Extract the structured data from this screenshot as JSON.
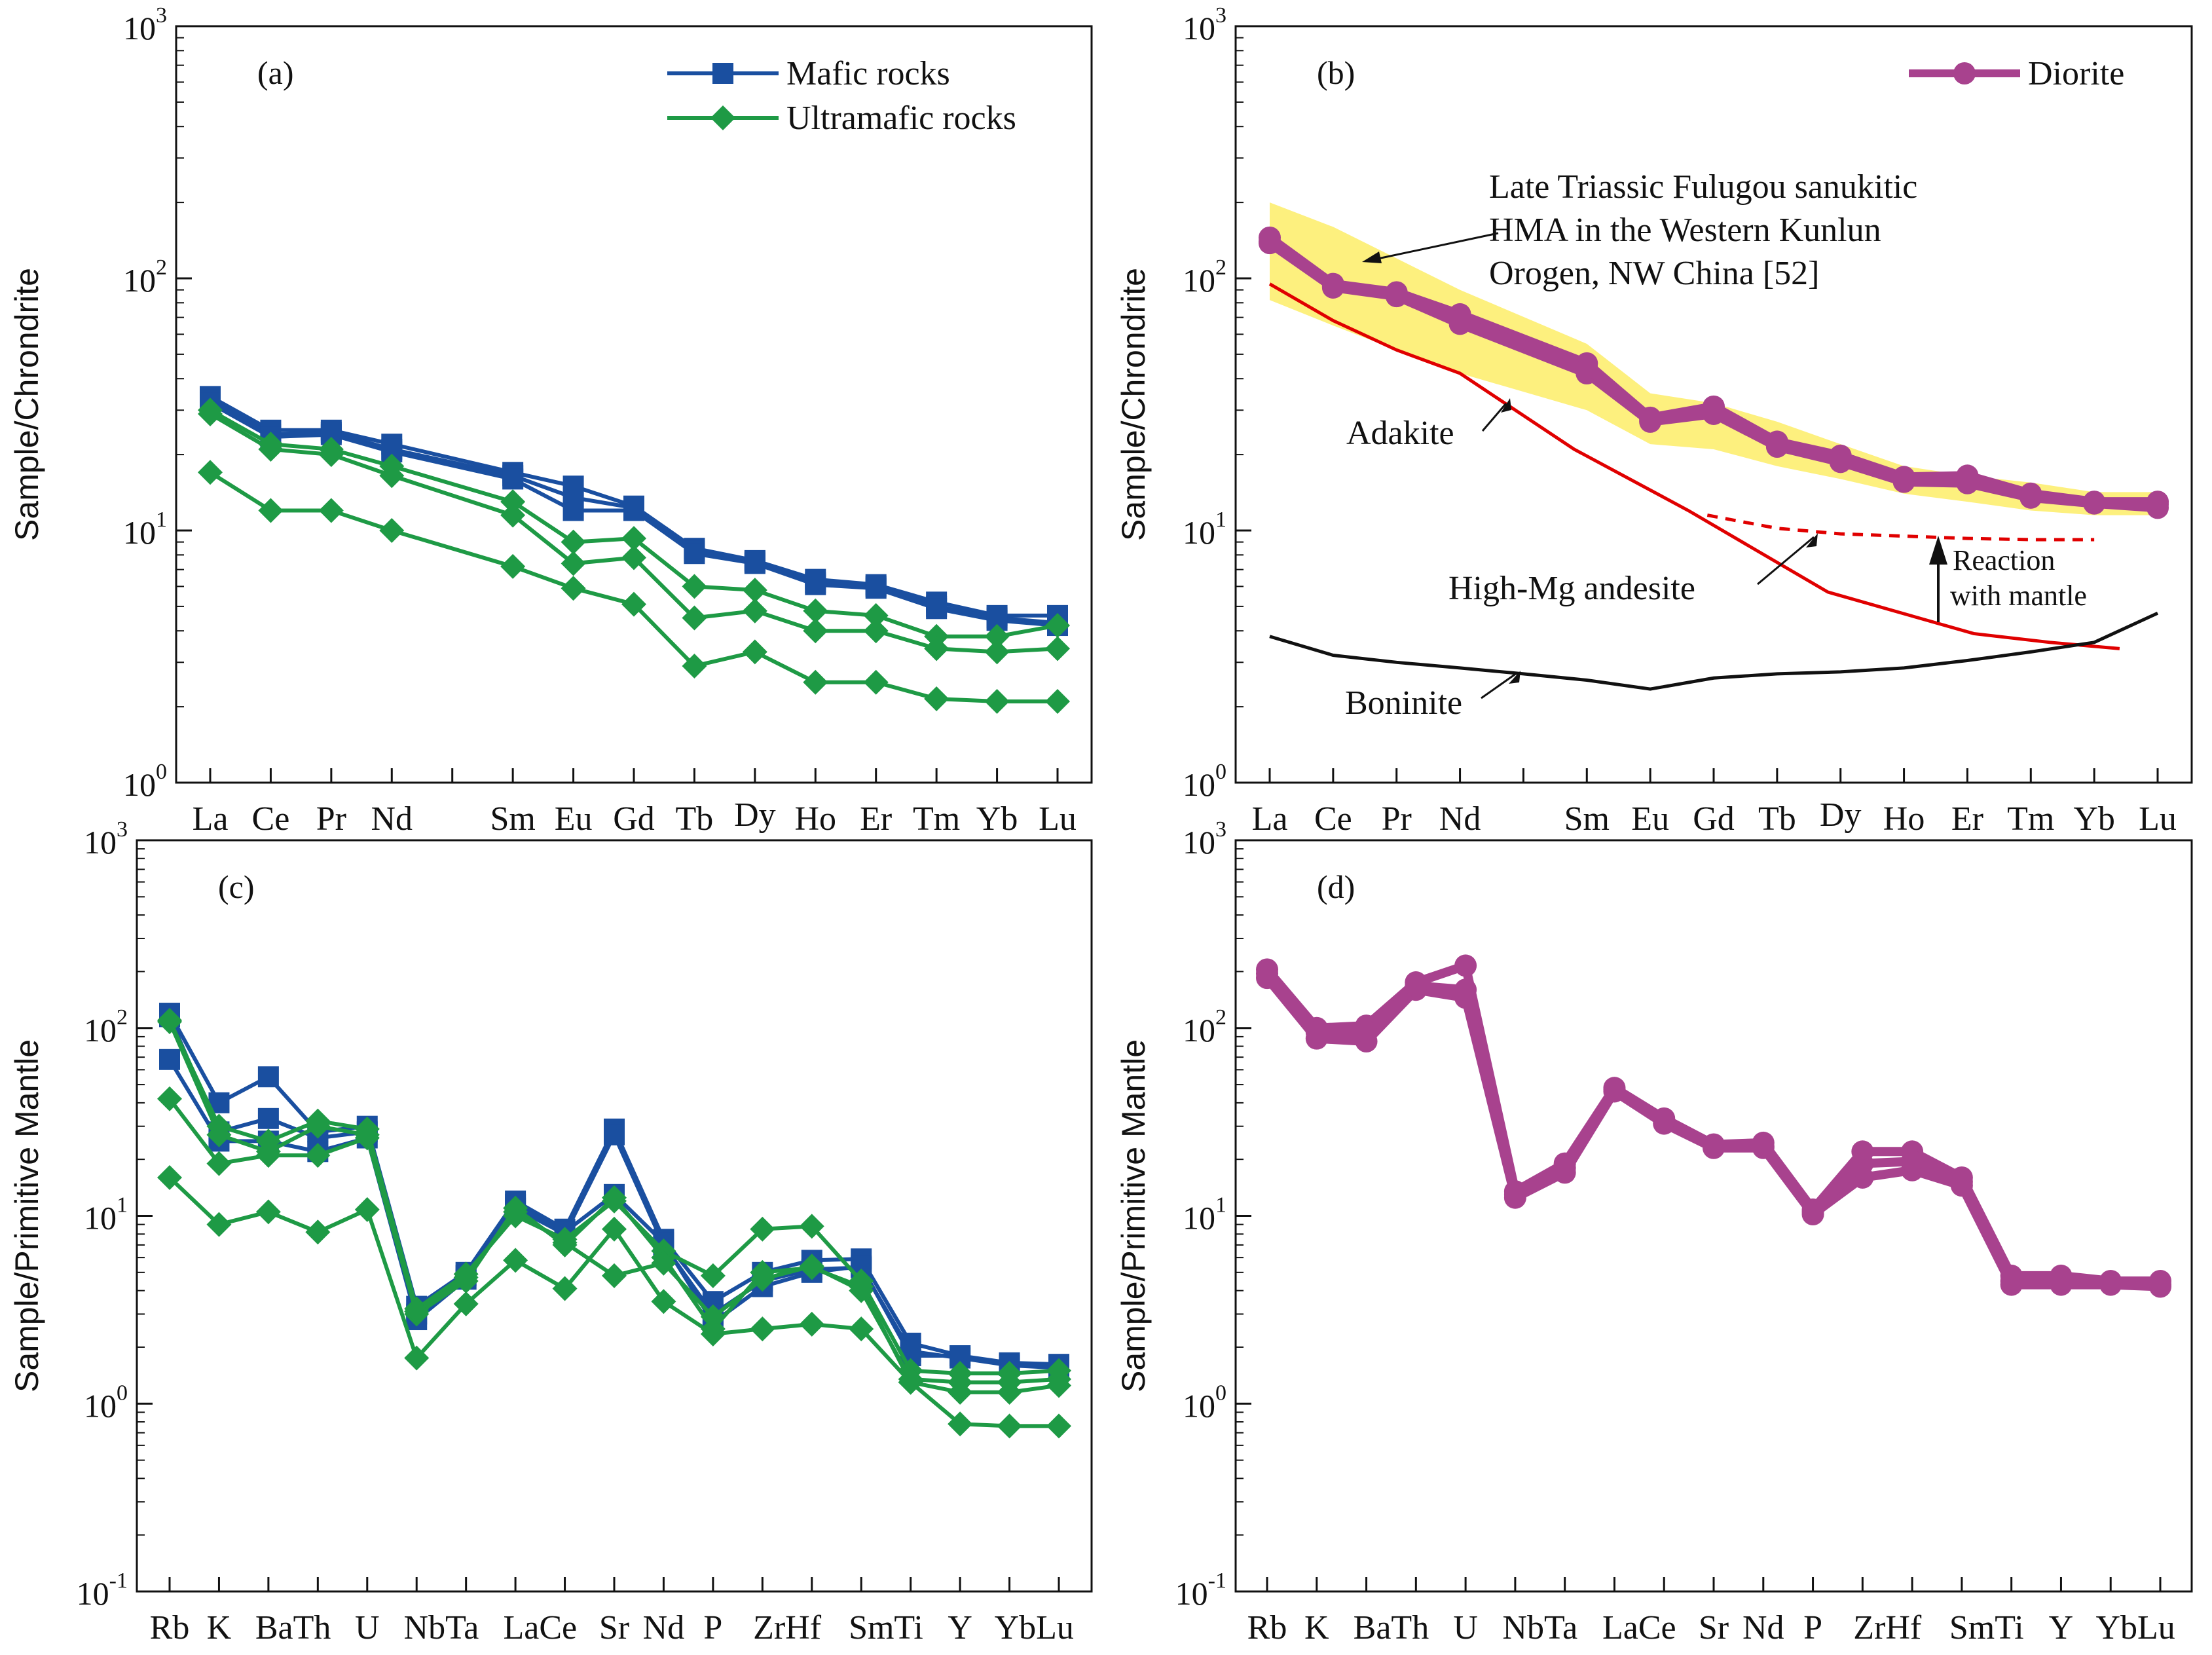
{
  "chart_data": [
    {
      "id": "a",
      "type": "line",
      "panel_label": "(a)",
      "title": "",
      "ylabel": "Sample/Chrondrite",
      "yscale": "log",
      "ylim": [
        1,
        1000
      ],
      "yticks": [
        {
          "value": 1,
          "base": "10",
          "exp": "0"
        },
        {
          "value": 10,
          "base": "10",
          "exp": "1"
        },
        {
          "value": 100,
          "base": "10",
          "exp": "2"
        },
        {
          "value": 1000,
          "base": "10",
          "exp": "3"
        }
      ],
      "categories": [
        "La",
        "Ce",
        "Pr",
        "Nd",
        "Sm",
        "Eu",
        "Gd",
        "Tb",
        "Dy",
        "Ho",
        "Er",
        "Tm",
        "Yb",
        "Lu"
      ],
      "x_positions": [
        0,
        1,
        2,
        3,
        5,
        6,
        7,
        8,
        9,
        10,
        11,
        12,
        13,
        14
      ],
      "legend": {
        "placement": "top-right",
        "entries": [
          {
            "label": "Mafic rocks",
            "color": "#1a4fa0",
            "marker": "square"
          },
          {
            "label": "Ultramafic rocks",
            "color": "#1e9a45",
            "marker": "diamond"
          }
        ]
      },
      "series": [
        {
          "name": "Mafic rocks",
          "color": "#1a4fa0",
          "marker": "square",
          "values": [
            34,
            25,
            25,
            22,
            17,
            15,
            12.5,
            8.5,
            7.6,
            6.4,
            6.1,
            5.2,
            4.6,
            4.6
          ]
        },
        {
          "name": "Mafic rocks",
          "color": "#1a4fa0",
          "marker": "square",
          "values": [
            33,
            24,
            24.5,
            21,
            16.5,
            13.5,
            12.3,
            8.3,
            7.5,
            6.2,
            6.0,
            5.0,
            4.5,
            4.3
          ]
        },
        {
          "name": "Mafic rocks",
          "color": "#1a4fa0",
          "marker": "square",
          "values": [
            32,
            23.5,
            24,
            20.5,
            16,
            12,
            12,
            8.1,
            7.4,
            6.1,
            5.9,
            4.9,
            4.4,
            4.2
          ]
        },
        {
          "name": "Ultramafic rocks",
          "color": "#1e9a45",
          "marker": "diamond",
          "values": [
            30,
            22,
            21,
            18,
            13,
            9,
            9.3,
            6,
            5.8,
            4.8,
            4.6,
            3.8,
            3.8,
            4.2
          ]
        },
        {
          "name": "Ultramafic rocks",
          "color": "#1e9a45",
          "marker": "diamond",
          "values": [
            29,
            21,
            20,
            16.5,
            11.5,
            7.4,
            7.8,
            4.5,
            4.8,
            4.0,
            4.0,
            3.4,
            3.3,
            3.4
          ]
        },
        {
          "name": "Ultramafic rocks",
          "color": "#1e9a45",
          "marker": "diamond",
          "values": [
            17,
            12,
            12,
            10,
            7.2,
            5.9,
            5.1,
            2.9,
            3.3,
            2.5,
            2.5,
            2.15,
            2.1,
            2.1
          ]
        }
      ]
    },
    {
      "id": "b",
      "type": "line",
      "panel_label": "(b)",
      "title": "",
      "ylabel": "Sample/Chrondrite",
      "yscale": "log",
      "ylim": [
        1,
        1000
      ],
      "yticks": [
        {
          "value": 1,
          "base": "10",
          "exp": "0"
        },
        {
          "value": 10,
          "base": "10",
          "exp": "1"
        },
        {
          "value": 100,
          "base": "10",
          "exp": "2"
        },
        {
          "value": 1000,
          "base": "10",
          "exp": "3"
        }
      ],
      "categories": [
        "La",
        "Ce",
        "Pr",
        "Nd",
        "Sm",
        "Eu",
        "Gd",
        "Tb",
        "Dy",
        "Ho",
        "Er",
        "Tm",
        "Yb",
        "Lu"
      ],
      "x_positions": [
        0,
        1,
        2,
        3,
        5,
        6,
        7,
        8,
        9,
        10,
        11,
        12,
        13,
        14
      ],
      "legend": {
        "placement": "top-right",
        "entries": [
          {
            "label": "Diorite",
            "color": "#a8428e",
            "marker": "circle"
          }
        ]
      },
      "series": [
        {
          "name": "Diorite",
          "color": "#a8428e",
          "marker": "circle",
          "values": [
            145,
            95,
            88,
            72,
            46,
            28,
            31,
            22.5,
            19.8,
            16.3,
            16.5,
            14.0,
            13.0,
            13.0
          ]
        },
        {
          "name": "Diorite",
          "color": "#a8428e",
          "marker": "circle",
          "values": [
            138,
            92,
            85,
            66,
            42,
            27,
            29,
            21.5,
            18.7,
            15.6,
            15.4,
            13.5,
            12.8,
            12.3
          ]
        },
        {
          "name": "Diorite",
          "color": "#a8428e",
          "marker": "circle",
          "values": [
            140,
            93,
            86,
            68,
            44,
            27.5,
            30,
            22,
            19.2,
            16.0,
            16.0,
            13.8,
            12.9,
            12.7
          ]
        }
      ],
      "reference_band": {
        "name": "Late Triassic Fulugou sanukitic HMA",
        "upper": [
          200,
          160,
          120,
          90,
          55,
          35,
          32,
          27,
          22,
          18,
          16.5,
          15.5,
          14.2,
          14.2
        ],
        "lower": [
          82,
          65,
          52,
          42,
          30,
          22,
          21,
          18,
          16,
          14,
          13,
          12,
          11.5,
          11.5
        ]
      },
      "reference_lines": [
        {
          "name": "Adakite",
          "color": "#e00000",
          "dashed": false,
          "x": [
            0,
            1,
            2,
            3,
            4.8,
            6.6,
            8.8,
            11.1,
            12.3,
            13.4
          ],
          "values": [
            95,
            68,
            52,
            42,
            21,
            12,
            5.7,
            3.9,
            3.6,
            3.4
          ]
        },
        {
          "name": "High-Mg andesite",
          "color": "#e00000",
          "dashed": true,
          "x": [
            6.9,
            8.0,
            9.0,
            10.0,
            11.0,
            12.0,
            13.0
          ],
          "values": [
            11.5,
            10.2,
            9.7,
            9.5,
            9.3,
            9.2,
            9.2
          ]
        },
        {
          "name": "Boninite",
          "color": "#111111",
          "dashed": false,
          "x": [
            0,
            1,
            2,
            3,
            4,
            5,
            6,
            7,
            8,
            9,
            10,
            11,
            12,
            13,
            14
          ],
          "values": [
            3.8,
            3.2,
            3.0,
            2.85,
            2.7,
            2.55,
            2.35,
            2.6,
            2.7,
            2.75,
            2.85,
            3.05,
            3.3,
            3.6,
            4.7
          ]
        }
      ],
      "annotations": [
        {
          "text_lines": [
            "Late Triassic Fulugou sanukitic",
            "HMA in the Western Kunlun",
            "Orogen, NW China [52]"
          ]
        },
        {
          "text": "Adakite"
        },
        {
          "text": "High-Mg andesite"
        },
        {
          "text": "Boninite"
        },
        {
          "text_lines": [
            "Reaction",
            "with mantle"
          ]
        }
      ]
    },
    {
      "id": "c",
      "type": "line",
      "panel_label": "(c)",
      "title": "",
      "ylabel": "Sample/Primitive Mantle",
      "yscale": "log",
      "ylim": [
        0.1,
        1000
      ],
      "yticks": [
        {
          "value": 0.1,
          "base": "10",
          "exp": "-1"
        },
        {
          "value": 1,
          "base": "10",
          "exp": "0"
        },
        {
          "value": 10,
          "base": "10",
          "exp": "1"
        },
        {
          "value": 100,
          "base": "10",
          "exp": "2"
        },
        {
          "value": 1000,
          "base": "10",
          "exp": "3"
        }
      ],
      "categories": [
        "Rb",
        "K",
        "Ba",
        "Th",
        "U",
        "Nb",
        "Ta",
        "La",
        "Ce",
        "Sr",
        "Nd",
        "P",
        "Zr",
        "Hf",
        "Sm",
        "Ti",
        "Y",
        "Yb",
        "Lu"
      ],
      "tick_labels": [
        "Rb",
        "K",
        "BaTh",
        "U",
        "NbTa",
        "LaCe",
        "Sr",
        "Nd",
        "P",
        "ZrHf",
        "SmTi",
        "Y",
        "YbLu"
      ],
      "series": [
        {
          "name": "Mafic rocks",
          "color": "#1a4fa0",
          "marker": "square",
          "values": [
            120,
            40,
            55,
            28,
            30,
            3.3,
            5.0,
            12,
            8.5,
            29,
            7.5,
            3.5,
            5.0,
            5.8,
            5.9,
            2.1,
            1.8,
            1.65,
            1.62
          ]
        },
        {
          "name": "Mafic rocks",
          "color": "#1a4fa0",
          "marker": "square",
          "values": [
            115,
            28,
            33,
            26,
            28,
            3.0,
            4.8,
            11,
            8.0,
            27,
            7.0,
            3.0,
            4.5,
            5.2,
            5.3,
            1.9,
            1.75,
            1.6,
            1.55
          ]
        },
        {
          "name": "Mafic rocks",
          "color": "#1a4fa0",
          "marker": "square",
          "values": [
            68,
            25,
            25,
            22,
            26,
            2.8,
            4.6,
            11.5,
            8.2,
            13,
            7.2,
            2.7,
            4.2,
            5.0,
            5.4,
            1.8,
            1.8,
            1.6,
            1.6
          ]
        },
        {
          "name": "Ultramafic rocks",
          "color": "#1e9a45",
          "marker": "diamond",
          "values": [
            110,
            30,
            25,
            32,
            29,
            3.2,
            4.9,
            10,
            7.5,
            12,
            6.5,
            4.8,
            8.5,
            8.8,
            4.5,
            1.5,
            1.45,
            1.45,
            1.5
          ]
        },
        {
          "name": "Ultramafic rocks",
          "color": "#1e9a45",
          "marker": "diamond",
          "values": [
            42,
            19,
            21,
            21,
            26,
            3.0,
            4.5,
            11,
            7.0,
            12.5,
            6.0,
            2.5,
            5.0,
            5.3,
            4.2,
            1.3,
            1.15,
            1.15,
            1.25
          ]
        },
        {
          "name": "Ultramafic rocks",
          "color": "#1e9a45",
          "marker": "diamond",
          "values": [
            16,
            9.0,
            10.5,
            8.2,
            10.8,
            1.75,
            3.4,
            5.8,
            4.1,
            8.5,
            3.5,
            2.35,
            2.5,
            2.65,
            2.5,
            1.3,
            0.78,
            0.76,
            0.76
          ]
        },
        {
          "name": "Ultramafic rocks",
          "color": "#1e9a45",
          "marker": "diamond",
          "values": [
            108,
            27,
            22,
            30,
            27,
            3.1,
            4.7,
            10.5,
            7.2,
            4.8,
            5.6,
            2.9,
            4.6,
            5.4,
            4.0,
            1.35,
            1.3,
            1.3,
            1.35
          ]
        }
      ]
    },
    {
      "id": "d",
      "type": "line",
      "panel_label": "(d)",
      "title": "",
      "ylabel": "Sample/Primitive Mantle",
      "yscale": "log",
      "ylim": [
        0.1,
        1000
      ],
      "yticks": [
        {
          "value": 0.1,
          "base": "10",
          "exp": "-1"
        },
        {
          "value": 1,
          "base": "10",
          "exp": "0"
        },
        {
          "value": 10,
          "base": "10",
          "exp": "1"
        },
        {
          "value": 100,
          "base": "10",
          "exp": "2"
        },
        {
          "value": 1000,
          "base": "10",
          "exp": "3"
        }
      ],
      "categories": [
        "Rb",
        "K",
        "Ba",
        "Th",
        "U",
        "Nb",
        "Ta",
        "La",
        "Ce",
        "Sr",
        "Nd",
        "P",
        "Zr",
        "Hf",
        "Sm",
        "Ti",
        "Y",
        "Yb",
        "Lu"
      ],
      "tick_labels": [
        "Rb",
        "K",
        "BaTh",
        "U",
        "NbTa",
        "LaCe",
        "Sr",
        "Nd",
        "P",
        "ZrHf",
        "SmTi",
        "Y",
        "YbLu"
      ],
      "series": [
        {
          "name": "Diorite",
          "color": "#a8428e",
          "marker": "circle",
          "values": [
            205,
            100,
            103,
            175,
            215,
            13.5,
            19,
            48,
            33,
            24,
            24.5,
            10.8,
            22,
            22,
            16,
            4.8,
            4.8,
            4.5,
            4.5
          ]
        },
        {
          "name": "Diorite",
          "color": "#a8428e",
          "marker": "circle",
          "values": [
            185,
            88,
            85,
            160,
            145,
            12.5,
            17,
            46,
            31,
            23,
            23,
            10.2,
            16,
            17.5,
            14.5,
            4.3,
            4.3,
            4.3,
            4.2
          ]
        },
        {
          "name": "Diorite",
          "color": "#a8428e",
          "marker": "circle",
          "values": [
            195,
            95,
            95,
            168,
            160,
            13,
            18,
            47,
            32,
            23.5,
            23.5,
            10.5,
            19,
            19.5,
            15.2,
            4.5,
            4.6,
            4.4,
            4.3
          ]
        }
      ]
    }
  ]
}
